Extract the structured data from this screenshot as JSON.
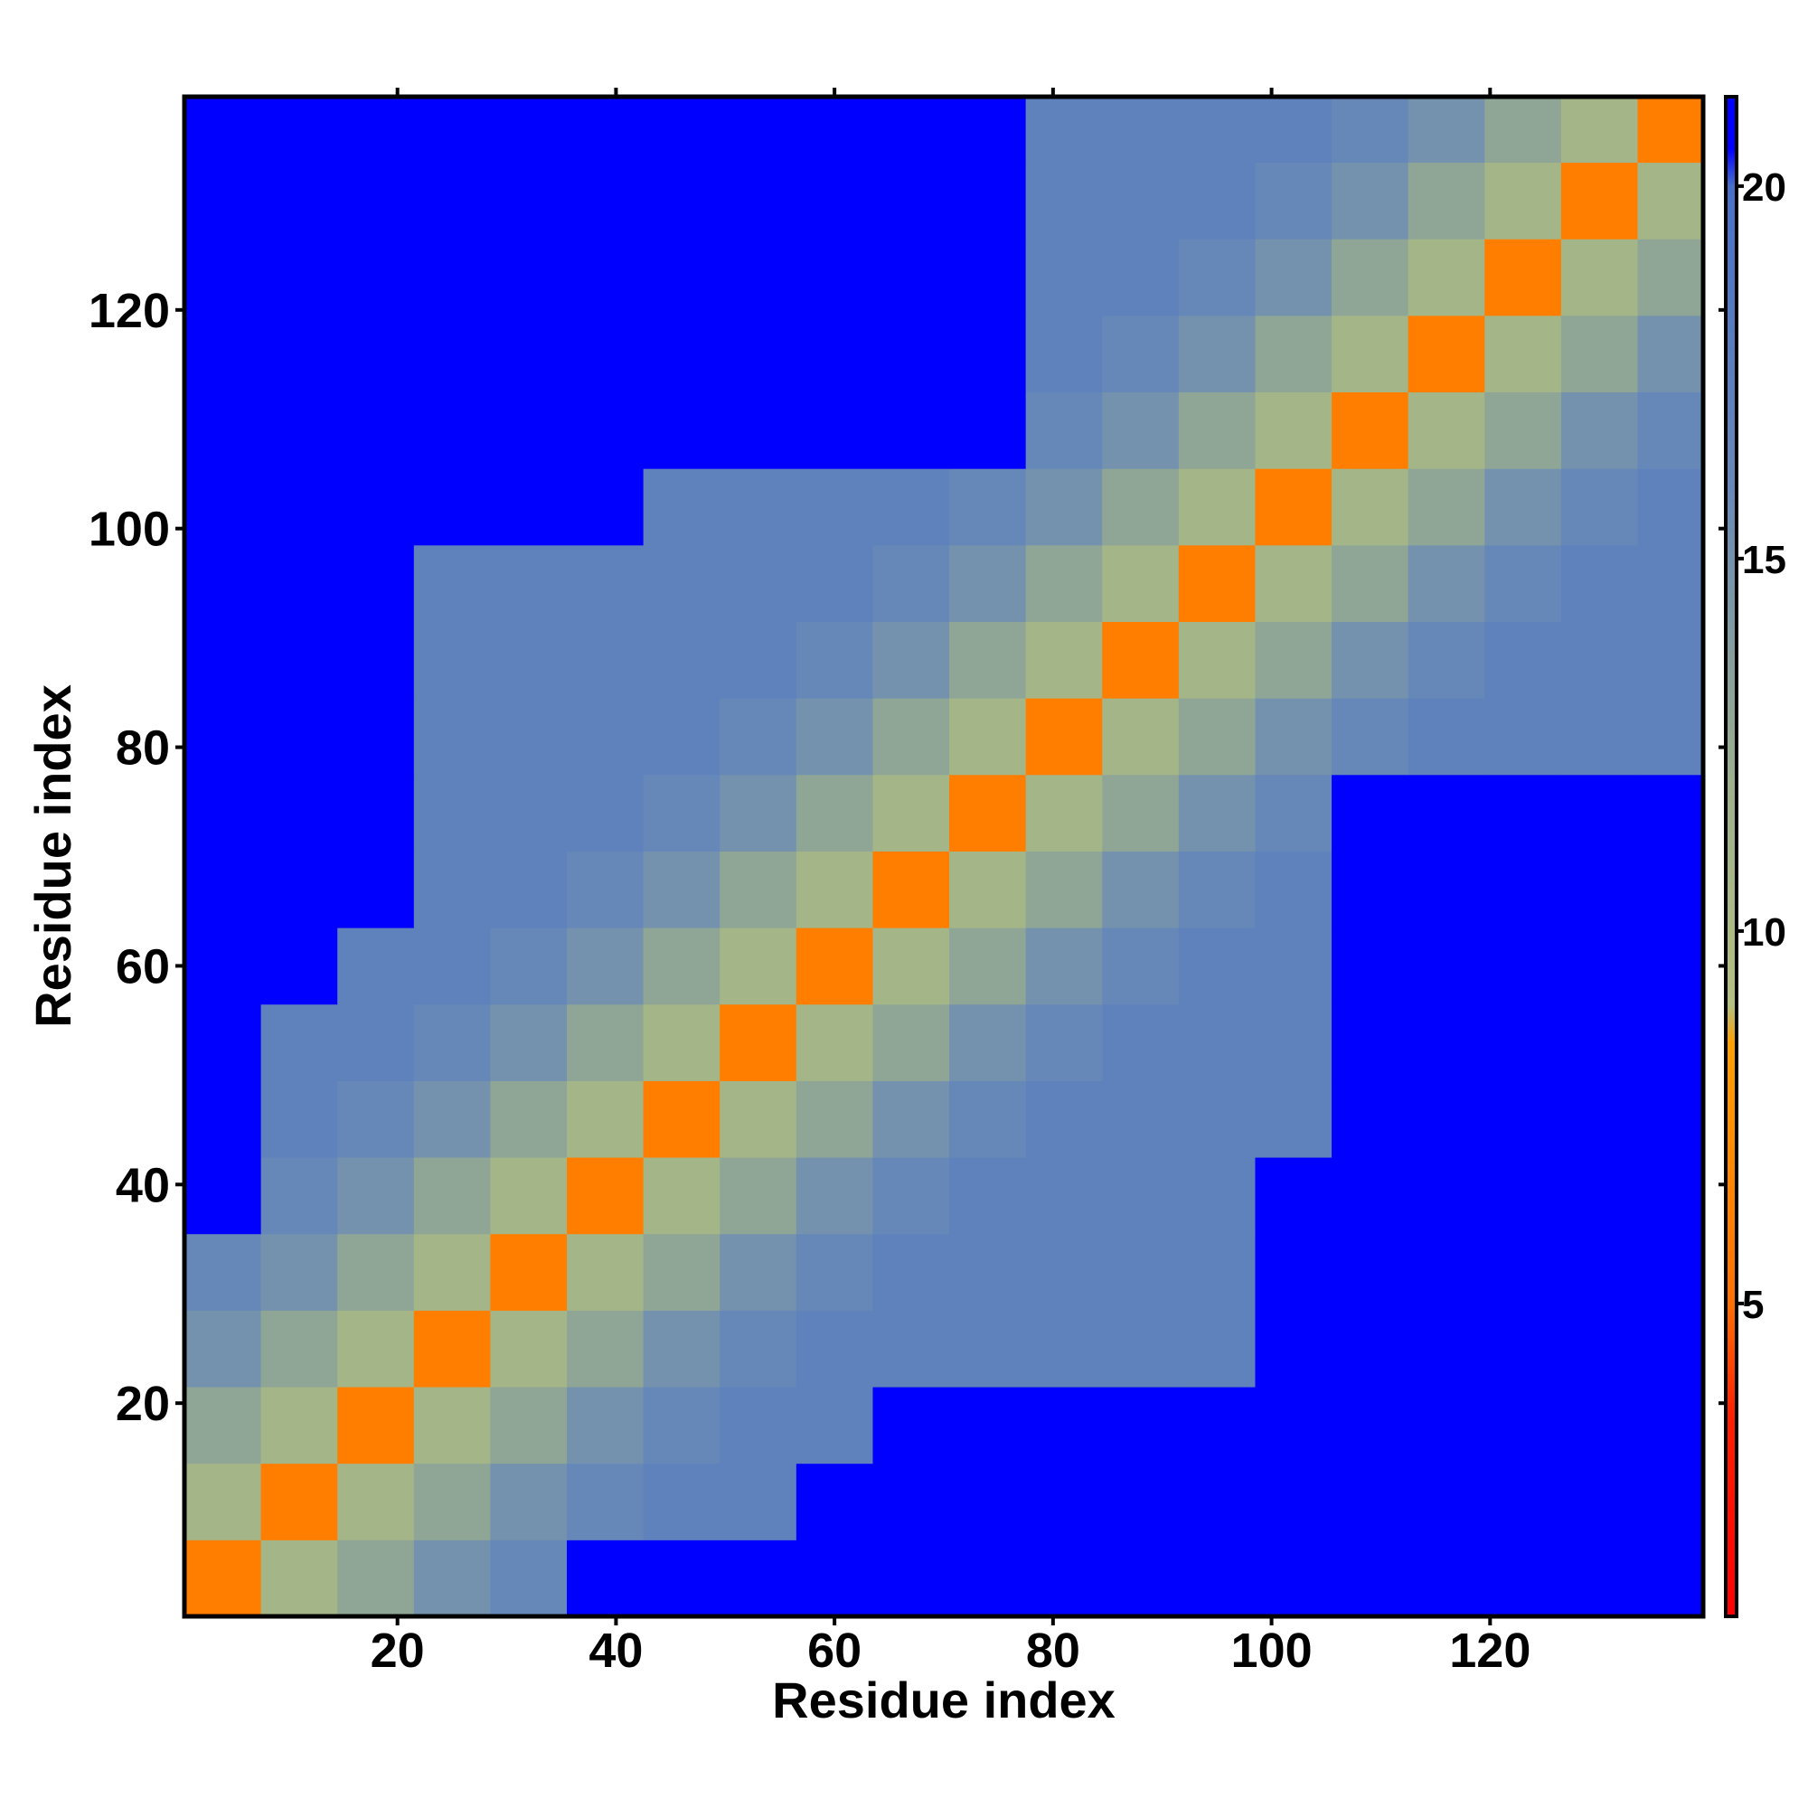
{
  "chart_data": {
    "type": "heatmap",
    "xlabel": "Residue index",
    "ylabel": "Residue index",
    "xlim": [
      0.5,
      139.5
    ],
    "ylim": [
      0.5,
      139.5
    ],
    "xticks": [
      20,
      40,
      60,
      80,
      100,
      120
    ],
    "yticks": [
      20,
      40,
      60,
      80,
      100,
      120
    ],
    "xbins": [
      0.5,
      7.5,
      14.5,
      21.5,
      28.5,
      35.5,
      42.5,
      49.5,
      56.5,
      63.5,
      70.5,
      77.5,
      84.5,
      91.5,
      98.5,
      105.5,
      112.5,
      119.5,
      126.5,
      133.5,
      139.5
    ],
    "ybins": [
      0.5,
      7.5,
      14.5,
      21.5,
      28.5,
      35.5,
      42.5,
      49.5,
      56.5,
      63.5,
      70.5,
      77.5,
      84.5,
      91.5,
      98.5,
      105.5,
      112.5,
      119.5,
      126.5,
      133.5,
      139.5
    ],
    "values": [
      [
        6,
        11,
        13,
        15,
        16,
        21,
        21,
        21,
        21,
        21,
        21,
        21,
        21,
        21,
        21,
        21,
        21,
        21,
        21,
        21
      ],
      [
        11,
        6,
        11,
        13,
        15,
        16,
        17,
        17,
        21,
        21,
        21,
        21,
        21,
        21,
        21,
        21,
        21,
        21,
        21,
        21
      ],
      [
        13,
        11,
        6,
        11,
        13,
        15,
        16,
        17,
        17,
        21,
        21,
        21,
        21,
        21,
        21,
        21,
        21,
        21,
        21,
        21
      ],
      [
        15,
        13,
        11,
        6,
        11,
        13,
        15,
        16,
        17,
        17,
        17,
        17,
        17,
        17,
        21,
        21,
        21,
        21,
        21,
        21
      ],
      [
        16,
        15,
        13,
        11,
        6,
        11,
        13,
        15,
        16,
        17,
        17,
        17,
        17,
        17,
        21,
        21,
        21,
        21,
        21,
        21
      ],
      [
        21,
        16,
        15,
        13,
        11,
        6,
        11,
        13,
        15,
        16,
        17,
        17,
        17,
        17,
        21,
        21,
        21,
        21,
        21,
        21
      ],
      [
        21,
        17,
        16,
        15,
        13,
        11,
        6,
        11,
        13,
        15,
        16,
        17,
        17,
        17,
        17,
        21,
        21,
        21,
        21,
        21
      ],
      [
        21,
        17,
        17,
        16,
        15,
        13,
        11,
        6,
        11,
        13,
        15,
        16,
        17,
        17,
        17,
        21,
        21,
        21,
        21,
        21
      ],
      [
        21,
        21,
        17,
        17,
        16,
        15,
        13,
        11,
        6,
        11,
        13,
        15,
        16,
        17,
        17,
        21,
        21,
        21,
        21,
        21
      ],
      [
        21,
        21,
        21,
        17,
        17,
        16,
        15,
        13,
        11,
        6,
        11,
        13,
        15,
        16,
        17,
        21,
        21,
        21,
        21,
        21
      ],
      [
        21,
        21,
        21,
        17,
        17,
        17,
        16,
        15,
        13,
        11,
        6,
        11,
        13,
        15,
        16,
        21,
        21,
        21,
        21,
        21
      ],
      [
        21,
        21,
        21,
        17,
        17,
        17,
        17,
        16,
        15,
        13,
        11,
        6,
        11,
        13,
        15,
        16,
        17,
        17,
        17,
        17
      ],
      [
        21,
        21,
        21,
        17,
        17,
        17,
        17,
        17,
        16,
        15,
        13,
        11,
        6,
        11,
        13,
        15,
        16,
        17,
        17,
        17
      ],
      [
        21,
        21,
        21,
        17,
        17,
        17,
        17,
        17,
        17,
        16,
        15,
        13,
        11,
        6,
        11,
        13,
        15,
        16,
        17,
        17
      ],
      [
        21,
        21,
        21,
        21,
        21,
        21,
        17,
        17,
        17,
        17,
        16,
        15,
        13,
        11,
        6,
        11,
        13,
        15,
        16,
        17
      ],
      [
        21,
        21,
        21,
        21,
        21,
        21,
        21,
        21,
        21,
        21,
        21,
        16,
        15,
        13,
        11,
        6,
        11,
        13,
        15,
        16
      ],
      [
        21,
        21,
        21,
        21,
        21,
        21,
        21,
        21,
        21,
        21,
        21,
        17,
        16,
        15,
        13,
        11,
        6,
        11,
        13,
        15
      ],
      [
        21,
        21,
        21,
        21,
        21,
        21,
        21,
        21,
        21,
        21,
        21,
        17,
        17,
        16,
        15,
        13,
        11,
        6,
        11,
        13
      ],
      [
        21,
        21,
        21,
        21,
        21,
        21,
        21,
        21,
        21,
        21,
        21,
        17,
        17,
        17,
        16,
        15,
        13,
        11,
        6,
        11
      ],
      [
        21,
        21,
        21,
        21,
        21,
        21,
        21,
        21,
        21,
        21,
        21,
        17,
        17,
        17,
        17,
        16,
        15,
        13,
        11,
        6
      ]
    ],
    "colorbar": {
      "lim": [
        0.8,
        21.2
      ],
      "ticks": [
        5,
        10,
        15,
        20
      ],
      "stops": [
        [
          0.8,
          "#ff0000"
        ],
        [
          3.5,
          "#ff2000"
        ],
        [
          5,
          "#ff7000"
        ],
        [
          8.5,
          "#ffa000"
        ],
        [
          9,
          "#b4c080"
        ],
        [
          12,
          "#9cb08c"
        ],
        [
          16,
          "#6688b8"
        ],
        [
          20,
          "#4870c8"
        ],
        [
          20.5,
          "#0000ff"
        ],
        [
          21.2,
          "#0000ff"
        ]
      ]
    }
  }
}
